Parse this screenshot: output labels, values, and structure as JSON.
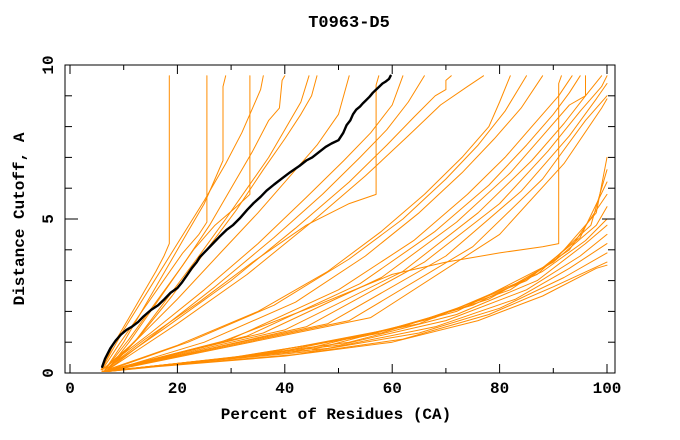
{
  "page": {
    "background": "#ffffff"
  },
  "chart_data": {
    "type": "line",
    "title": "T0963-D5",
    "xlabel": "Percent of Residues (CA)",
    "ylabel": "Distance Cutoff, A",
    "xlim": [
      -1,
      102
    ],
    "ylim": [
      0,
      10
    ],
    "x_ticks_major": [
      0,
      20,
      40,
      60,
      80,
      100
    ],
    "x_ticks_minor": [
      10,
      30,
      50,
      70,
      90
    ],
    "y_ticks_major": [
      0,
      5,
      10
    ],
    "y_ticks_minor": [
      1,
      2,
      3,
      4,
      6,
      7,
      8,
      9
    ],
    "grid": false,
    "legend": "none",
    "colors": {
      "model_lines": "#ff8c00",
      "reference_line": "#000000",
      "axis": "#000000"
    },
    "reference_series": {
      "name": "highlighted-model",
      "points": [
        [
          6,
          0.2
        ],
        [
          6.5,
          0.45
        ],
        [
          7.5,
          0.8
        ],
        [
          8.5,
          1.05
        ],
        [
          9.5,
          1.25
        ],
        [
          10.5,
          1.4
        ],
        [
          11.5,
          1.5
        ],
        [
          12.7,
          1.66
        ],
        [
          13.6,
          1.82
        ],
        [
          15.1,
          2.05
        ],
        [
          16.4,
          2.2
        ],
        [
          17.6,
          2.4
        ],
        [
          18.7,
          2.6
        ],
        [
          20,
          2.76
        ],
        [
          20.9,
          2.95
        ],
        [
          21.8,
          3.18
        ],
        [
          22.7,
          3.41
        ],
        [
          23.6,
          3.6
        ],
        [
          24.2,
          3.77
        ],
        [
          25.5,
          4.0
        ],
        [
          26.7,
          4.22
        ],
        [
          27.8,
          4.42
        ],
        [
          29.1,
          4.64
        ],
        [
          30.4,
          4.81
        ],
        [
          31.6,
          5.02
        ],
        [
          33,
          5.3
        ],
        [
          34.2,
          5.52
        ],
        [
          35.5,
          5.72
        ],
        [
          36.6,
          5.92
        ],
        [
          38,
          6.12
        ],
        [
          39.5,
          6.32
        ],
        [
          41,
          6.52
        ],
        [
          42.7,
          6.72
        ],
        [
          44,
          6.9
        ],
        [
          45.1,
          7.0
        ],
        [
          46.4,
          7.18
        ],
        [
          47.6,
          7.34
        ],
        [
          48.7,
          7.45
        ],
        [
          50,
          7.56
        ],
        [
          50.9,
          7.8
        ],
        [
          51.5,
          8.05
        ],
        [
          52.2,
          8.2
        ],
        [
          52.7,
          8.4
        ],
        [
          53.3,
          8.55
        ],
        [
          54,
          8.65
        ],
        [
          54.5,
          8.75
        ],
        [
          55.1,
          8.85
        ],
        [
          55.8,
          8.97
        ],
        [
          56.4,
          9.1
        ],
        [
          57,
          9.2
        ],
        [
          57.6,
          9.3
        ],
        [
          58.2,
          9.4
        ],
        [
          58.7,
          9.45
        ],
        [
          59.4,
          9.55
        ],
        [
          59.7,
          9.65
        ]
      ]
    },
    "model_series": [
      [
        [
          5.8,
          0.1
        ],
        [
          7,
          0.5
        ],
        [
          8,
          0.9
        ],
        [
          11,
          1.8
        ],
        [
          14,
          2.7
        ],
        [
          16,
          3.3
        ],
        [
          17.5,
          3.8
        ],
        [
          18.5,
          4.2
        ],
        [
          18.5,
          9.65
        ]
      ],
      [
        [
          6,
          0.1
        ],
        [
          9,
          0.9
        ],
        [
          13,
          1.9
        ],
        [
          17,
          2.9
        ],
        [
          21,
          3.9
        ],
        [
          24,
          4.5
        ],
        [
          25.5,
          4.9
        ],
        [
          25.5,
          9.65
        ]
      ],
      [
        [
          6.5,
          0.1
        ],
        [
          10,
          1.0
        ],
        [
          14,
          2.2
        ],
        [
          18,
          3.4
        ],
        [
          22,
          4.6
        ],
        [
          25,
          5.5
        ],
        [
          27,
          6.3
        ],
        [
          28.5,
          6.9
        ],
        [
          28.5,
          9.3
        ],
        [
          29,
          9.65
        ]
      ],
      [
        [
          7,
          0.1
        ],
        [
          11,
          1.0
        ],
        [
          15,
          2.0
        ],
        [
          19,
          3.0
        ],
        [
          23,
          4.0
        ],
        [
          27,
          4.8
        ],
        [
          31,
          5.4
        ],
        [
          33.5,
          5.8
        ],
        [
          33.5,
          9.65
        ]
      ],
      [
        [
          6,
          0.15
        ],
        [
          10,
          1.4
        ],
        [
          15,
          2.8
        ],
        [
          20,
          4.2
        ],
        [
          25,
          5.6
        ],
        [
          29,
          6.8
        ],
        [
          32,
          7.8
        ],
        [
          34,
          8.6
        ],
        [
          35.5,
          9.2
        ],
        [
          36,
          9.65
        ]
      ],
      [
        [
          6.5,
          0.1
        ],
        [
          11,
          1.1
        ],
        [
          16,
          2.3
        ],
        [
          21,
          3.5
        ],
        [
          26,
          4.8
        ],
        [
          30,
          6.0
        ],
        [
          34,
          7.2
        ],
        [
          37,
          8.2
        ],
        [
          39,
          8.6
        ],
        [
          39.5,
          9.5
        ],
        [
          40,
          9.65
        ]
      ],
      [
        [
          7,
          0.1
        ],
        [
          12,
          1.0
        ],
        [
          18,
          2.4
        ],
        [
          24,
          3.8
        ],
        [
          29,
          5.0
        ],
        [
          33,
          6.0
        ],
        [
          37,
          7.0
        ],
        [
          40,
          7.9
        ],
        [
          43,
          8.8
        ],
        [
          44.5,
          9.65
        ]
      ],
      [
        [
          7,
          0.15
        ],
        [
          13,
          1.2
        ],
        [
          19,
          2.5
        ],
        [
          25,
          3.9
        ],
        [
          31,
          5.3
        ],
        [
          36,
          6.6
        ],
        [
          40,
          7.6
        ],
        [
          43,
          8.4
        ],
        [
          45,
          9.0
        ],
        [
          46,
          9.65
        ]
      ],
      [
        [
          6,
          0.1
        ],
        [
          12,
          1.0
        ],
        [
          20,
          2.4
        ],
        [
          28,
          3.9
        ],
        [
          35,
          5.2
        ],
        [
          41,
          6.4
        ],
        [
          46,
          7.4
        ],
        [
          50,
          8.4
        ],
        [
          52,
          9.65
        ]
      ],
      [
        [
          6.5,
          0.1
        ],
        [
          14,
          1.1
        ],
        [
          24,
          2.3
        ],
        [
          34,
          3.6
        ],
        [
          44,
          4.8
        ],
        [
          52,
          5.5
        ],
        [
          57,
          5.8
        ],
        [
          57,
          9.35
        ],
        [
          57.5,
          9.65
        ]
      ],
      [
        [
          6,
          0.1
        ],
        [
          15,
          1.3
        ],
        [
          25,
          2.7
        ],
        [
          35,
          4.2
        ],
        [
          44,
          5.7
        ],
        [
          51,
          6.9
        ],
        [
          56,
          7.8
        ],
        [
          60,
          8.7
        ],
        [
          62,
          9.65
        ]
      ],
      [
        [
          7,
          0.1
        ],
        [
          16,
          1.3
        ],
        [
          27,
          2.8
        ],
        [
          38,
          4.4
        ],
        [
          47,
          5.8
        ],
        [
          54,
          7.0
        ],
        [
          59,
          7.9
        ],
        [
          63,
          8.8
        ],
        [
          66,
          9.65
        ]
      ],
      [
        [
          6.5,
          0.1
        ],
        [
          18,
          1.5
        ],
        [
          30,
          3.0
        ],
        [
          42,
          4.7
        ],
        [
          52,
          6.2
        ],
        [
          59,
          7.4
        ],
        [
          64,
          8.3
        ],
        [
          68,
          9.0
        ],
        [
          70,
          9.2
        ],
        [
          70,
          9.5
        ],
        [
          71,
          9.65
        ]
      ],
      [
        [
          7,
          0.1
        ],
        [
          20,
          1.6
        ],
        [
          33,
          3.2
        ],
        [
          45,
          4.9
        ],
        [
          55,
          6.4
        ],
        [
          63,
          7.7
        ],
        [
          69,
          8.7
        ],
        [
          74,
          9.3
        ],
        [
          77,
          9.65
        ]
      ],
      [
        [
          6,
          0.05
        ],
        [
          20,
          0.9
        ],
        [
          35,
          2.0
        ],
        [
          48,
          3.3
        ],
        [
          58,
          4.6
        ],
        [
          66,
          5.8
        ],
        [
          73,
          7.0
        ],
        [
          78,
          8.0
        ],
        [
          80,
          8.8
        ],
        [
          82,
          9.65
        ]
      ],
      [
        [
          6.5,
          0.05
        ],
        [
          22,
          1.0
        ],
        [
          38,
          2.2
        ],
        [
          52,
          3.7
        ],
        [
          62,
          5.0
        ],
        [
          70,
          6.3
        ],
        [
          76,
          7.4
        ],
        [
          81,
          8.5
        ],
        [
          85,
          9.65
        ]
      ],
      [
        [
          7,
          0.05
        ],
        [
          25,
          1.0
        ],
        [
          42,
          2.3
        ],
        [
          55,
          3.8
        ],
        [
          65,
          5.2
        ],
        [
          73,
          6.5
        ],
        [
          79,
          7.6
        ],
        [
          84,
          8.6
        ],
        [
          88,
          9.65
        ]
      ],
      [
        [
          6,
          0.05
        ],
        [
          28,
          1.0
        ],
        [
          46,
          2.2
        ],
        [
          60,
          3.2
        ],
        [
          70,
          3.6
        ],
        [
          80,
          3.9
        ],
        [
          88,
          4.1
        ],
        [
          91,
          4.2
        ],
        [
          91,
          9.4
        ],
        [
          91.5,
          9.65
        ]
      ],
      [
        [
          6.5,
          0.05
        ],
        [
          30,
          1.1
        ],
        [
          50,
          2.7
        ],
        [
          64,
          4.3
        ],
        [
          74,
          5.8
        ],
        [
          81,
          7.0
        ],
        [
          87,
          8.2
        ],
        [
          91,
          9.0
        ],
        [
          93.5,
          9.65
        ]
      ],
      [
        [
          7,
          0.05
        ],
        [
          33,
          1.2
        ],
        [
          54,
          2.9
        ],
        [
          68,
          4.6
        ],
        [
          78,
          6.1
        ],
        [
          85,
          7.4
        ],
        [
          90,
          8.4
        ],
        [
          93,
          9.1
        ],
        [
          95,
          9.65
        ]
      ],
      [
        [
          6,
          0.05
        ],
        [
          36,
          1.3
        ],
        [
          58,
          3.1
        ],
        [
          72,
          4.9
        ],
        [
          82,
          6.5
        ],
        [
          88,
          7.7
        ],
        [
          93,
          8.7
        ],
        [
          96,
          9.0
        ],
        [
          96,
          9.65
        ]
      ],
      [
        [
          6.5,
          0.05
        ],
        [
          40,
          1.4
        ],
        [
          62,
          3.3
        ],
        [
          76,
          5.2
        ],
        [
          86,
          6.9
        ],
        [
          92,
          8.1
        ],
        [
          96,
          9.0
        ],
        [
          99,
          9.65
        ]
      ],
      [
        [
          7,
          0.05
        ],
        [
          44,
          1.5
        ],
        [
          66,
          3.6
        ],
        [
          80,
          5.5
        ],
        [
          89,
          7.2
        ],
        [
          95,
          8.5
        ],
        [
          99,
          9.3
        ],
        [
          100,
          9.65
        ]
      ],
      [
        [
          6,
          0.05
        ],
        [
          48,
          1.6
        ],
        [
          70,
          3.8
        ],
        [
          84,
          5.9
        ],
        [
          93,
          7.7
        ],
        [
          98,
          8.9
        ],
        [
          100,
          9.4
        ]
      ],
      [
        [
          6.5,
          0.05
        ],
        [
          52,
          1.7
        ],
        [
          75,
          4.1
        ],
        [
          88,
          6.3
        ],
        [
          96,
          8.2
        ],
        [
          100,
          9.0
        ]
      ],
      [
        [
          7,
          0.05
        ],
        [
          56,
          1.8
        ],
        [
          80,
          4.5
        ],
        [
          92,
          6.8
        ],
        [
          99,
          8.6
        ],
        [
          100,
          8.9
        ]
      ],
      [
        [
          6,
          0.05
        ],
        [
          30,
          0.5
        ],
        [
          55,
          1.2
        ],
        [
          75,
          2.2
        ],
        [
          88,
          3.3
        ],
        [
          96,
          4.3
        ],
        [
          100,
          5.0
        ]
      ],
      [
        [
          6.5,
          0.05
        ],
        [
          32,
          0.55
        ],
        [
          58,
          1.3
        ],
        [
          78,
          2.4
        ],
        [
          90,
          3.6
        ],
        [
          98,
          4.8
        ],
        [
          100,
          5.4
        ]
      ],
      [
        [
          7,
          0.05
        ],
        [
          35,
          0.6
        ],
        [
          62,
          1.5
        ],
        [
          82,
          2.7
        ],
        [
          93,
          4.0
        ],
        [
          100,
          5.8
        ]
      ],
      [
        [
          6,
          0.05
        ],
        [
          38,
          0.65
        ],
        [
          65,
          1.6
        ],
        [
          85,
          3.0
        ],
        [
          95,
          4.4
        ],
        [
          100,
          6.2
        ]
      ],
      [
        [
          6.5,
          0.05
        ],
        [
          42,
          0.7
        ],
        [
          68,
          1.8
        ],
        [
          87,
          3.2
        ],
        [
          97,
          4.8
        ],
        [
          100,
          6.6
        ]
      ],
      [
        [
          7,
          0.05
        ],
        [
          45,
          0.75
        ],
        [
          72,
          2.0
        ],
        [
          90,
          3.6
        ],
        [
          98,
          5.2
        ],
        [
          100,
          7.0
        ]
      ],
      [
        [
          6,
          0.05
        ],
        [
          25,
          0.4
        ],
        [
          50,
          0.9
        ],
        [
          70,
          1.7
        ],
        [
          85,
          2.7
        ],
        [
          95,
          3.8
        ],
        [
          100,
          4.5
        ]
      ],
      [
        [
          6.5,
          0.05
        ],
        [
          28,
          0.45
        ],
        [
          52,
          1.0
        ],
        [
          72,
          1.9
        ],
        [
          87,
          3.0
        ],
        [
          96,
          4.2
        ],
        [
          100,
          4.8
        ]
      ],
      [
        [
          7,
          0.05
        ],
        [
          22,
          0.35
        ],
        [
          48,
          0.8
        ],
        [
          68,
          1.5
        ],
        [
          83,
          2.4
        ],
        [
          93,
          3.4
        ],
        [
          100,
          4.2
        ]
      ],
      [
        [
          6,
          0.05
        ],
        [
          20,
          0.3
        ],
        [
          45,
          0.7
        ],
        [
          65,
          1.3
        ],
        [
          80,
          2.1
        ],
        [
          92,
          3.1
        ],
        [
          100,
          3.9
        ]
      ],
      [
        [
          6.5,
          0.05
        ],
        [
          18,
          0.25
        ],
        [
          42,
          0.6
        ],
        [
          62,
          1.1
        ],
        [
          78,
          1.9
        ],
        [
          90,
          2.8
        ],
        [
          100,
          3.6
        ]
      ],
      [
        [
          7,
          0.05
        ],
        [
          16,
          0.2
        ],
        [
          40,
          0.55
        ],
        [
          60,
          1.0
        ],
        [
          76,
          1.7
        ],
        [
          88,
          2.5
        ],
        [
          98,
          3.4
        ],
        [
          100,
          3.5
        ]
      ]
    ]
  }
}
